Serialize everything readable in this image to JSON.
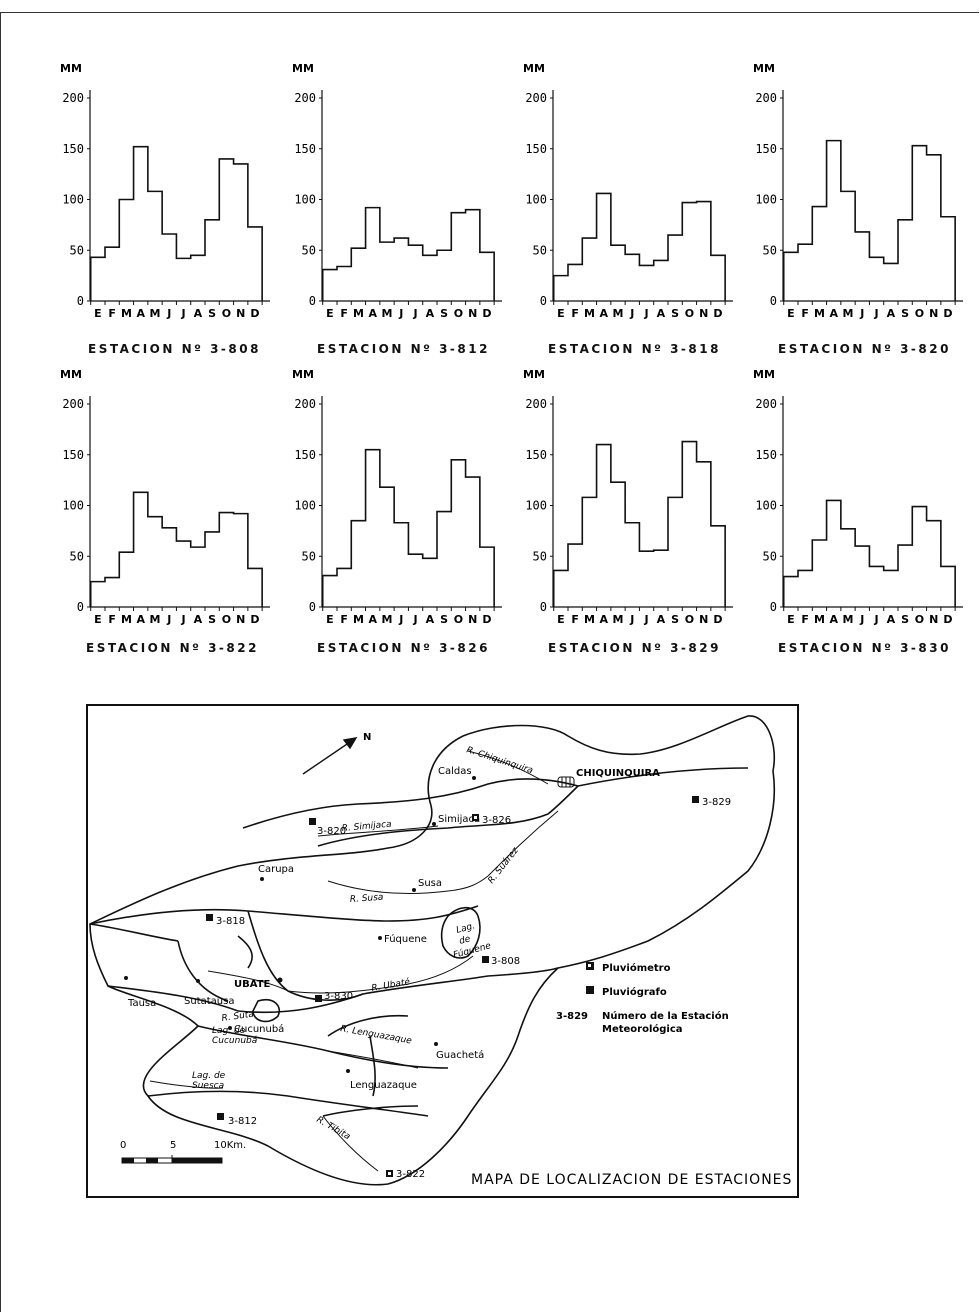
{
  "chart_data": [
    {
      "type": "bar",
      "station": "ESTACION Nº 3-808",
      "unit": "MM",
      "ylim": [
        0,
        200
      ],
      "yticks": [
        "0",
        "50",
        "100",
        "150",
        "200"
      ],
      "categories": [
        "E",
        "F",
        "M",
        "A",
        "M",
        "J",
        "J",
        "A",
        "S",
        "O",
        "N",
        "D"
      ],
      "values": [
        43,
        53,
        100,
        152,
        108,
        66,
        42,
        45,
        80,
        140,
        135,
        73
      ]
    },
    {
      "type": "bar",
      "station": "ESTACION Nº 3-812",
      "unit": "MM",
      "ylim": [
        0,
        200
      ],
      "yticks": [
        "0",
        "50",
        "100",
        "150",
        "200"
      ],
      "categories": [
        "E",
        "F",
        "M",
        "A",
        "M",
        "J",
        "J",
        "A",
        "S",
        "O",
        "N",
        "D"
      ],
      "values": [
        31,
        34,
        52,
        92,
        58,
        62,
        55,
        45,
        50,
        87,
        90,
        48
      ]
    },
    {
      "type": "bar",
      "station": "ESTACION Nº 3-818",
      "unit": "MM",
      "ylim": [
        0,
        200
      ],
      "yticks": [
        "0",
        "50",
        "100",
        "150",
        "200"
      ],
      "categories": [
        "E",
        "F",
        "M",
        "A",
        "M",
        "J",
        "J",
        "A",
        "S",
        "O",
        "N",
        "D"
      ],
      "values": [
        25,
        36,
        62,
        106,
        55,
        46,
        35,
        40,
        65,
        97,
        98,
        45
      ]
    },
    {
      "type": "bar",
      "station": "ESTACION Nº 3-820",
      "unit": "MM",
      "ylim": [
        0,
        200
      ],
      "yticks": [
        "0",
        "50",
        "100",
        "150",
        "200"
      ],
      "categories": [
        "E",
        "F",
        "M",
        "A",
        "M",
        "J",
        "J",
        "A",
        "S",
        "O",
        "N",
        "D"
      ],
      "values": [
        48,
        56,
        93,
        158,
        108,
        68,
        43,
        37,
        80,
        153,
        144,
        83
      ]
    },
    {
      "type": "bar",
      "station": "ESTACION Nº 3-822",
      "unit": "MM",
      "ylim": [
        0,
        200
      ],
      "yticks": [
        "0",
        "50",
        "100",
        "150",
        "200"
      ],
      "categories": [
        "E",
        "F",
        "M",
        "A",
        "M",
        "J",
        "J",
        "A",
        "S",
        "O",
        "N",
        "D"
      ],
      "values": [
        25,
        29,
        54,
        113,
        89,
        78,
        65,
        59,
        74,
        93,
        92,
        38
      ]
    },
    {
      "type": "bar",
      "station": "ESTACION Nº 3-826",
      "unit": "MM",
      "ylim": [
        0,
        200
      ],
      "yticks": [
        "0",
        "50",
        "100",
        "150",
        "200"
      ],
      "categories": [
        "E",
        "F",
        "M",
        "A",
        "M",
        "J",
        "J",
        "A",
        "S",
        "O",
        "N",
        "D"
      ],
      "values": [
        31,
        38,
        85,
        155,
        118,
        83,
        52,
        48,
        94,
        145,
        128,
        59
      ]
    },
    {
      "type": "bar",
      "station": "ESTACION Nº 3-829",
      "unit": "MM",
      "ylim": [
        0,
        200
      ],
      "yticks": [
        "0",
        "50",
        "100",
        "150",
        "200"
      ],
      "categories": [
        "E",
        "F",
        "M",
        "A",
        "M",
        "J",
        "J",
        "A",
        "S",
        "O",
        "N",
        "D"
      ],
      "values": [
        36,
        62,
        108,
        160,
        123,
        83,
        55,
        56,
        108,
        163,
        143,
        80
      ]
    },
    {
      "type": "bar",
      "station": "ESTACION Nº 3-830",
      "unit": "MM",
      "ylim": [
        0,
        200
      ],
      "yticks": [
        "0",
        "50",
        "100",
        "150",
        "200"
      ],
      "categories": [
        "E",
        "F",
        "M",
        "A",
        "M",
        "J",
        "J",
        "A",
        "S",
        "O",
        "N",
        "D"
      ],
      "values": [
        30,
        36,
        66,
        105,
        77,
        60,
        40,
        36,
        61,
        99,
        85,
        40
      ]
    }
  ],
  "map": {
    "title": "MAPA DE LOCALIZACION DE ESTACIONES",
    "north": "N",
    "legend": {
      "pluviometro": "Pluviómetro",
      "pluviografo": "Pluviógrafo",
      "station_code": "3-829",
      "station_desc_1": "Número de la Estación",
      "station_desc_2": "Meteorológica"
    },
    "scale": {
      "labels": [
        "0",
        "5",
        "10Km."
      ]
    },
    "towns": {
      "chiquinquira": "CHIQUINQUIRA",
      "caldas": "Caldas",
      "simijaca": "Simijaca",
      "carupa": "Carupa",
      "susa": "Susa",
      "fuquene": "Fúquene",
      "ubate": "UBATE",
      "tausa": "Tausa",
      "sutatausa": "Sutatausa",
      "cucunuba": "Cucunubá",
      "guacheta": "Guachetá",
      "lenguazaque": "Lenguazaque"
    },
    "rivers": {
      "chiquinquira": "R. Chiquinquira",
      "simijaca": "R. Simijaca",
      "susa": "R. Susa",
      "suarez": "R. Suárez",
      "ubate": "R. Ubaté",
      "sute": "R. Suta",
      "lenguazaque": "R. Lenguazaque",
      "tibita": "R. Tibita"
    },
    "lakes": {
      "fuquene_1": "Lag.",
      "fuquene_2": "de",
      "fuquene_3": "Fúquene",
      "cucunuba_1": "Lag. de",
      "cucunuba_2": "Cucunubá",
      "suesca_1": "Lag. de",
      "suesca_2": "Suesca"
    },
    "stations": {
      "s808": "3-808",
      "s812": "3-812",
      "s818": "3-818",
      "s820": "3-820",
      "s822": "3-822",
      "s826": "3-826",
      "s829": "3-829",
      "s830": "3-830"
    }
  },
  "colors": {
    "ink": "#111111",
    "paper": "#ffffff"
  }
}
